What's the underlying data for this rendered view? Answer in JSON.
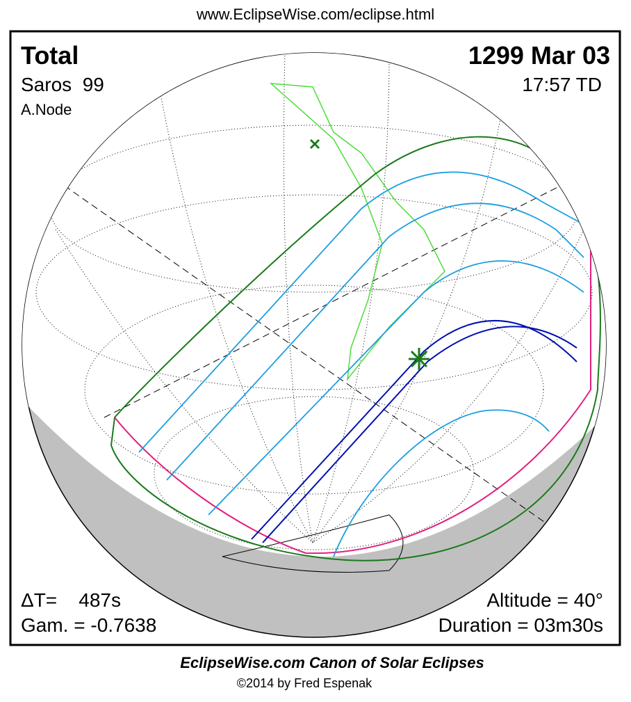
{
  "header": {
    "url": "www.EclipseWise.com/eclipse.html"
  },
  "eclipse": {
    "type": "Total",
    "date": "1299 Mar 03",
    "saros": "Saros  99",
    "time": "17:57 TD",
    "node": "A.Node",
    "delta_t": "ΔT=    487s",
    "gamma": "Gam. = -0.7638",
    "altitude": "Altitude = 40°",
    "duration": "Duration = 03m30s"
  },
  "footer": {
    "title": "EclipseWise.com Canon of Solar Eclipses",
    "copyright": "©2014 by Fred Espenak"
  }
}
